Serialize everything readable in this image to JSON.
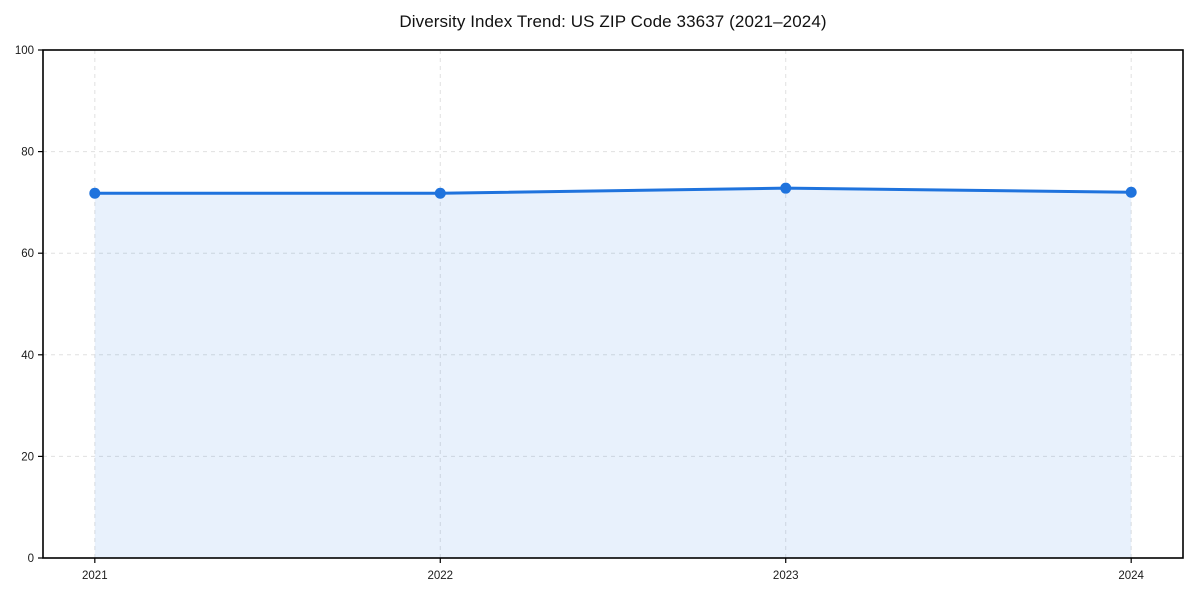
{
  "chart_data": {
    "type": "area",
    "title": "Diversity Index Trend: US ZIP Code 33637 (2021–2024)",
    "categories": [
      "2021",
      "2022",
      "2023",
      "2024"
    ],
    "values": [
      71.8,
      71.8,
      72.8,
      72.0
    ],
    "xlabel": "",
    "ylabel": "",
    "ylim": [
      0,
      100
    ],
    "yticks": [
      0,
      20,
      40,
      60,
      80,
      100
    ],
    "grid": true,
    "grid_style": "dashed",
    "legend": false,
    "colors": {
      "line": "#1f73dd",
      "fill": "rgba(31,115,221,0.10)",
      "grid": "#e0e0e0",
      "axis": "#000000",
      "tick_text": "#1a1a1a",
      "background": "#ffffff"
    }
  }
}
